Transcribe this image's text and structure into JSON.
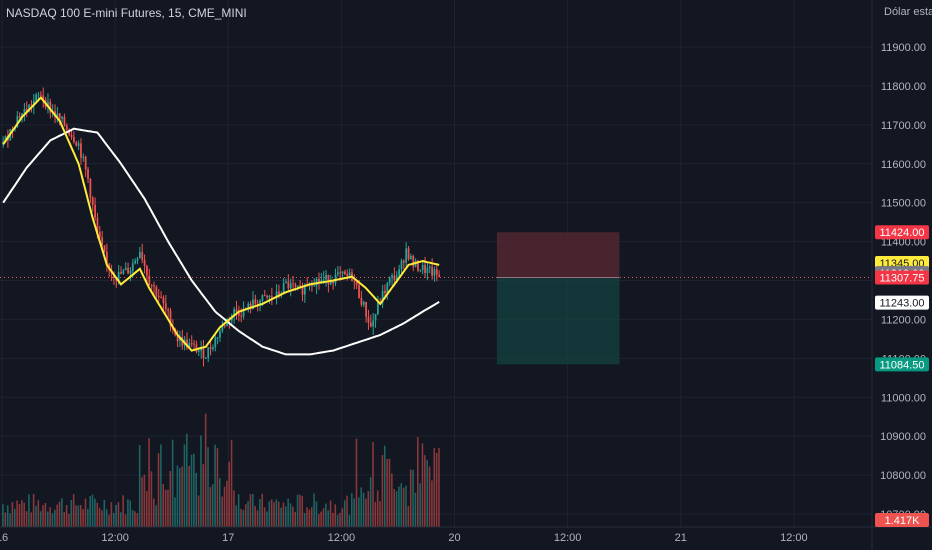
{
  "header": {
    "symbol_title": "NASDAQ 100 E-mini Futures, 15, CME_MINI",
    "currency_label": "Dólar estad"
  },
  "colors": {
    "background": "#131722",
    "grid": "#1f2330",
    "up": "#26a69a",
    "down": "#ef5350",
    "ma_fast": "#ffeb3b",
    "ma_slow": "#ffffff",
    "stop_zone": "#5a2a33",
    "target_zone": "#14403f"
  },
  "chart_data": {
    "type": "candlestick",
    "ylim": [
      10610,
      11960
    ],
    "y_ticks": [
      11900,
      11800,
      11700,
      11600,
      11500,
      11400,
      11300,
      11200,
      11100,
      11000,
      10900,
      10800,
      10700
    ],
    "y_tick_labels": [
      "11900.00",
      "11800.00",
      "11700.00",
      "11600.00",
      "11500.00",
      "11400.00",
      "11300.00",
      "11200.00",
      "11100.00",
      "11000.00",
      "10900.00",
      "10800.00",
      "10700.00"
    ],
    "x_tick_labels": [
      {
        "label": "16",
        "bar": 0
      },
      {
        "label": "12:00",
        "bar": 48
      },
      {
        "label": "17",
        "bar": 96
      },
      {
        "label": "12:00",
        "bar": 144
      },
      {
        "label": "20",
        "bar": 192
      },
      {
        "label": "12:00",
        "bar": 240
      },
      {
        "label": "21",
        "bar": 288
      },
      {
        "label": "12:00",
        "bar": 336
      }
    ],
    "bar_count_visible": 370,
    "price_anchors": [
      [
        0,
        11650
      ],
      [
        6,
        11720
      ],
      [
        10,
        11740
      ],
      [
        16,
        11780
      ],
      [
        20,
        11740
      ],
      [
        26,
        11700
      ],
      [
        32,
        11650
      ],
      [
        36,
        11560
      ],
      [
        40,
        11420
      ],
      [
        44,
        11340
      ],
      [
        48,
        11310
      ],
      [
        54,
        11330
      ],
      [
        58,
        11380
      ],
      [
        62,
        11300
      ],
      [
        66,
        11260
      ],
      [
        70,
        11210
      ],
      [
        74,
        11150
      ],
      [
        80,
        11130
      ],
      [
        86,
        11110
      ],
      [
        90,
        11150
      ],
      [
        94,
        11190
      ],
      [
        98,
        11220
      ],
      [
        102,
        11220
      ],
      [
        106,
        11240
      ],
      [
        110,
        11250
      ],
      [
        116,
        11260
      ],
      [
        120,
        11290
      ],
      [
        126,
        11270
      ],
      [
        130,
        11300
      ],
      [
        136,
        11300
      ],
      [
        142,
        11310
      ],
      [
        148,
        11310
      ],
      [
        152,
        11250
      ],
      [
        156,
        11180
      ],
      [
        160,
        11250
      ],
      [
        164,
        11300
      ],
      [
        168,
        11320
      ],
      [
        171,
        11380
      ],
      [
        174,
        11340
      ],
      [
        178,
        11330
      ],
      [
        182,
        11320
      ],
      [
        185,
        11310
      ]
    ],
    "ma_fast": [
      [
        0,
        11650
      ],
      [
        8,
        11720
      ],
      [
        16,
        11770
      ],
      [
        24,
        11710
      ],
      [
        32,
        11600
      ],
      [
        38,
        11460
      ],
      [
        44,
        11340
      ],
      [
        50,
        11290
      ],
      [
        54,
        11310
      ],
      [
        58,
        11330
      ],
      [
        62,
        11280
      ],
      [
        68,
        11220
      ],
      [
        74,
        11160
      ],
      [
        80,
        11120
      ],
      [
        86,
        11130
      ],
      [
        92,
        11180
      ],
      [
        100,
        11220
      ],
      [
        110,
        11240
      ],
      [
        120,
        11270
      ],
      [
        130,
        11290
      ],
      [
        140,
        11300
      ],
      [
        148,
        11310
      ],
      [
        154,
        11280
      ],
      [
        160,
        11240
      ],
      [
        166,
        11290
      ],
      [
        172,
        11340
      ],
      [
        178,
        11350
      ],
      [
        185,
        11340
      ]
    ],
    "ma_slow": [
      [
        0,
        11500
      ],
      [
        10,
        11590
      ],
      [
        20,
        11660
      ],
      [
        30,
        11690
      ],
      [
        40,
        11680
      ],
      [
        50,
        11600
      ],
      [
        60,
        11510
      ],
      [
        70,
        11400
      ],
      [
        80,
        11300
      ],
      [
        90,
        11220
      ],
      [
        100,
        11170
      ],
      [
        110,
        11130
      ],
      [
        120,
        11110
      ],
      [
        130,
        11110
      ],
      [
        140,
        11120
      ],
      [
        150,
        11140
      ],
      [
        160,
        11160
      ],
      [
        170,
        11190
      ],
      [
        178,
        11220
      ],
      [
        185,
        11245
      ]
    ],
    "price_labels": [
      {
        "value": 11424,
        "text": "11424.00",
        "bg": "#f23645",
        "fg": "#ffffff"
      },
      {
        "value": 11345,
        "text": "11345.00",
        "bg": "#ffeb3b",
        "fg": "#131722"
      },
      {
        "value": 11319,
        "text": "11319.00",
        "bg": "#787b86",
        "fg": "#ffffff"
      },
      {
        "value": 11307.75,
        "text": "11307.75",
        "bg": "#f23645",
        "fg": "#ffffff"
      },
      {
        "value": 11243,
        "text": "11243.00",
        "bg": "#ffffff",
        "fg": "#131722"
      },
      {
        "value": 11084.5,
        "text": "11084.50",
        "bg": "#089981",
        "fg": "#ffffff"
      }
    ],
    "last_price": 11307.75,
    "position": {
      "entry": 11307.75,
      "stop": 11424,
      "target": 11084.5,
      "start_bar": 210,
      "end_bar": 262
    },
    "volume_label": "1.417K",
    "volume_max": 1600
  }
}
